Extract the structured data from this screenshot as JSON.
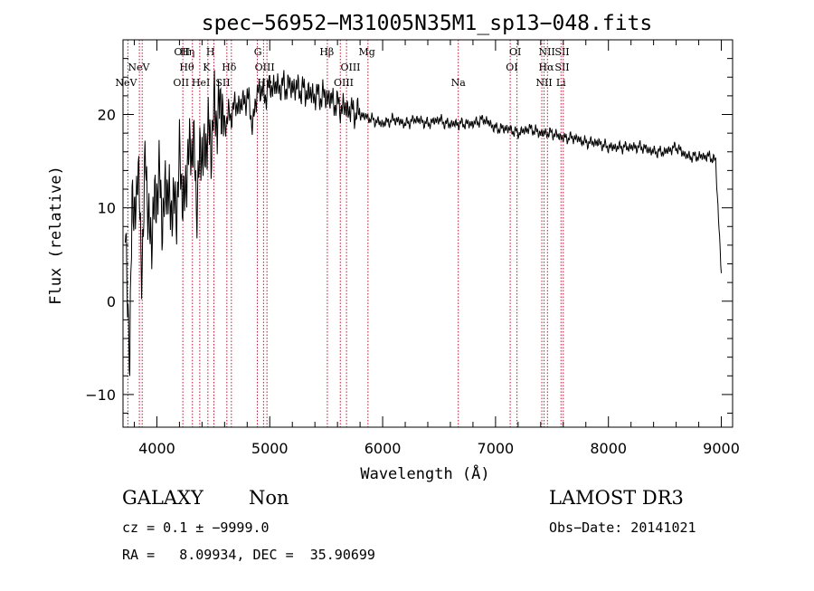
{
  "chart_data": {
    "type": "line",
    "title": "spec−56952−M31005N35M1_sp13−048.fits",
    "xlabel": "Wavelength (Å)",
    "ylabel": "Flux (relative)",
    "xlim": [
      3700,
      9100
    ],
    "ylim": [
      -13.5,
      28
    ],
    "x_ticks": [
      4000,
      5000,
      6000,
      7000,
      8000,
      9000
    ],
    "y_ticks": [
      -10,
      0,
      10,
      20
    ],
    "y_tick_labels": [
      "−10",
      "0",
      "10",
      "20"
    ],
    "series": [
      {
        "name": "flux",
        "x": [
          3720,
          3740,
          3760,
          3780,
          3800,
          3830,
          3860,
          3900,
          3950,
          4000,
          4050,
          4100,
          4150,
          4200,
          4250,
          4300,
          4350,
          4400,
          4450,
          4500,
          4550,
          4600,
          4650,
          4700,
          4750,
          4800,
          4850,
          4900,
          4950,
          5000,
          5100,
          5200,
          5300,
          5400,
          5500,
          5600,
          5700,
          5800,
          5900,
          6000,
          6100,
          6200,
          6300,
          6400,
          6500,
          6560,
          6600,
          6700,
          6800,
          6900,
          7000,
          7100,
          7200,
          7300,
          7400,
          7500,
          7600,
          7700,
          7800,
          7900,
          8000,
          8100,
          8200,
          8300,
          8400,
          8500,
          8600,
          8700,
          8800,
          8900,
          8950,
          9000
        ],
        "y": [
          6,
          3,
          -8,
          12,
          8,
          15,
          4,
          14,
          6,
          13,
          10,
          12,
          9,
          14,
          11,
          18,
          12,
          16,
          17,
          19,
          21,
          19,
          20,
          21,
          21,
          22,
          19,
          23,
          22,
          23,
          23,
          23,
          22.5,
          22,
          22,
          21,
          20.5,
          20,
          19.5,
          19,
          19.5,
          19,
          19.5,
          19,
          19.5,
          19,
          19,
          19,
          19,
          19.5,
          18.5,
          18.5,
          18,
          18.5,
          18,
          18,
          17.5,
          17.5,
          17,
          17,
          16.5,
          16.5,
          16.5,
          16.5,
          16,
          16,
          16.5,
          15.5,
          15.5,
          15.5,
          15,
          3
        ]
      }
    ],
    "annotations": [
      {
        "label": "NeV",
        "x": 3727,
        "row": 3
      },
      {
        "label": "NeV",
        "x": 3840,
        "row": 2
      },
      {
        "label": "OII",
        "x": 4223,
        "row": 1
      },
      {
        "label": "Hη",
        "x": 4270,
        "row": 1
      },
      {
        "label": "H",
        "x": 4475,
        "row": 1
      },
      {
        "label": "Hθ",
        "x": 4265,
        "row": 2
      },
      {
        "label": "K",
        "x": 4440,
        "row": 2
      },
      {
        "label": "Hδ",
        "x": 4640,
        "row": 2
      },
      {
        "label": "OII",
        "x": 4215,
        "row": 3
      },
      {
        "label": "HeI",
        "x": 4390,
        "row": 3
      },
      {
        "label": "SII",
        "x": 4585,
        "row": 3
      },
      {
        "label": "G",
        "x": 4895,
        "row": 1
      },
      {
        "label": "OIII",
        "x": 4955,
        "row": 2
      },
      {
        "label": "Hγ",
        "x": 4955,
        "row": 3
      },
      {
        "label": "Hβ",
        "x": 5505,
        "row": 1
      },
      {
        "label": "OIII",
        "x": 5715,
        "row": 2
      },
      {
        "label": "OIII",
        "x": 5655,
        "row": 3
      },
      {
        "label": "Mg",
        "x": 5860,
        "row": 1
      },
      {
        "label": "Na",
        "x": 6670,
        "row": 3
      },
      {
        "label": "OI",
        "x": 7175,
        "row": 1
      },
      {
        "label": "OI",
        "x": 7145,
        "row": 2
      },
      {
        "label": "NII",
        "x": 7455,
        "row": 1
      },
      {
        "label": "SII",
        "x": 7590,
        "row": 1
      },
      {
        "label": "Hα",
        "x": 7450,
        "row": 2
      },
      {
        "label": "SII",
        "x": 7590,
        "row": 2
      },
      {
        "label": "NII",
        "x": 7430,
        "row": 3
      },
      {
        "label": "Li",
        "x": 7580,
        "row": 3
      }
    ],
    "marker_lines": [
      3743,
      3845,
      3870,
      4230,
      4315,
      4380,
      4452,
      4505,
      4620,
      4660,
      4890,
      4945,
      4975,
      5510,
      5625,
      5680,
      5870,
      6670,
      7130,
      7190,
      7410,
      7430,
      7460,
      7580,
      7600
    ]
  },
  "info": {
    "class_label": "GALAXY",
    "subclass_label": "Non",
    "survey_label": "LAMOST DR3",
    "cz_text": "cz = 0.1 ± −9999.0",
    "obs_date_text": "Obs−Date: 20141021",
    "coords_text": "RA =   8.09934, DEC =  35.90699"
  }
}
